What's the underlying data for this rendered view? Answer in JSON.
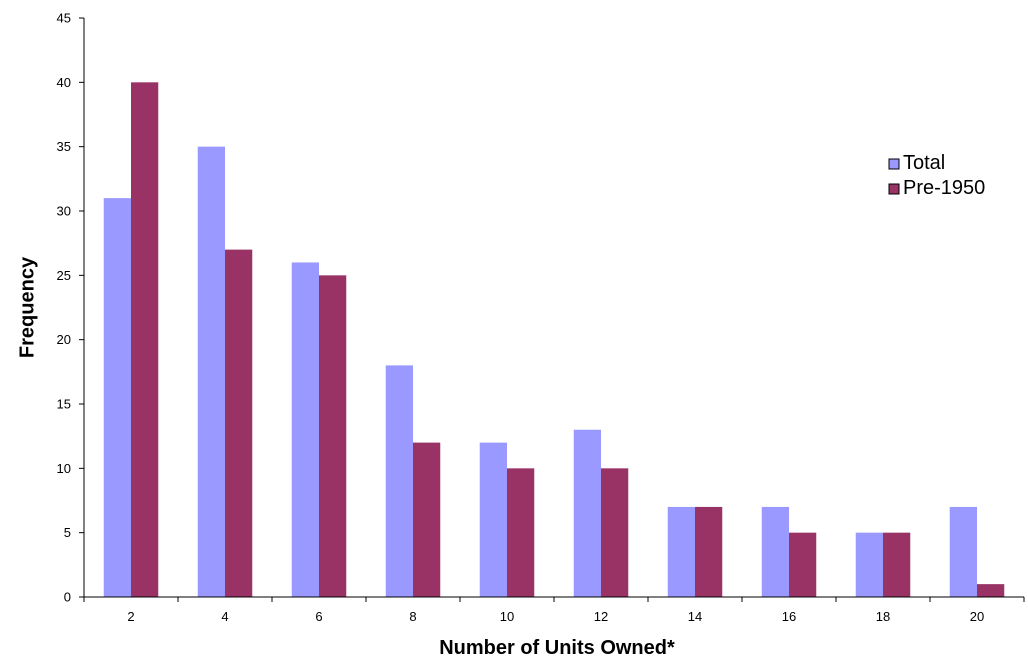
{
  "chart_data": {
    "type": "bar",
    "title": "",
    "xlabel": "Number of Units Owned*",
    "ylabel": "Frequency",
    "categories": [
      "2",
      "4",
      "6",
      "8",
      "10",
      "12",
      "14",
      "16",
      "18",
      "20"
    ],
    "series": [
      {
        "name": "Total",
        "color": "#9999ff",
        "values": [
          31,
          35,
          26,
          18,
          12,
          13,
          7,
          7,
          5,
          7
        ]
      },
      {
        "name": "Pre-1950",
        "color": "#993366",
        "values": [
          40,
          27,
          25,
          12,
          10,
          10,
          7,
          5,
          5,
          1
        ]
      }
    ],
    "ylim": [
      0,
      45
    ],
    "yticks": [
      "0",
      "5",
      "10",
      "15",
      "20",
      "25",
      "30",
      "35",
      "40",
      "45"
    ],
    "grid": false,
    "legend_position": "right"
  }
}
